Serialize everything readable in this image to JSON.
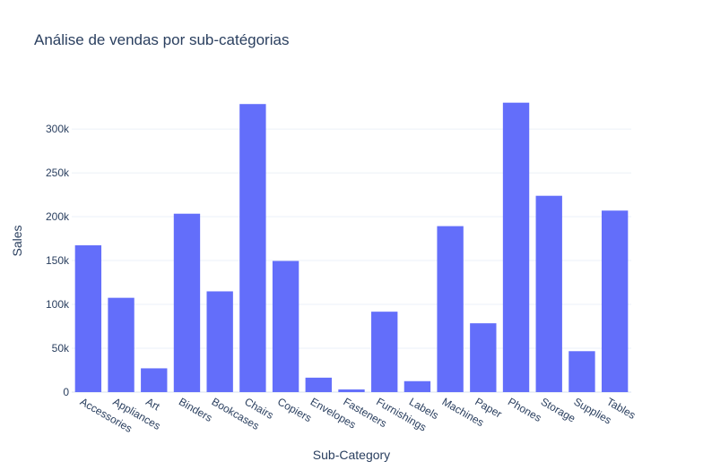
{
  "chart_data": {
    "type": "bar",
    "title": "Análise de vendas por sub-catégorias",
    "xlabel": "Sub-Category",
    "ylabel": "Sales",
    "categories": [
      "Accessories",
      "Appliances",
      "Art",
      "Binders",
      "Bookcases",
      "Chairs",
      "Copiers",
      "Envelopes",
      "Fasteners",
      "Furnishings",
      "Labels",
      "Machines",
      "Paper",
      "Phones",
      "Storage",
      "Supplies",
      "Tables"
    ],
    "values": [
      167380,
      107532,
      27119,
      203413,
      114880,
      328449,
      149528,
      16476,
      3024,
      91705,
      12486,
      189239,
      78479,
      330007,
      223844,
      46674,
      206966
    ],
    "ylim": [
      0,
      345000
    ],
    "yticks": [
      0,
      50000,
      100000,
      150000,
      200000,
      250000,
      300000
    ],
    "ytick_labels": [
      "0",
      "50k",
      "100k",
      "150k",
      "200k",
      "250k",
      "300k"
    ],
    "grid": true,
    "legend": "none",
    "bar_color": "#636efa",
    "background": "#ffffff",
    "grid_color": "#ebf0f8"
  }
}
